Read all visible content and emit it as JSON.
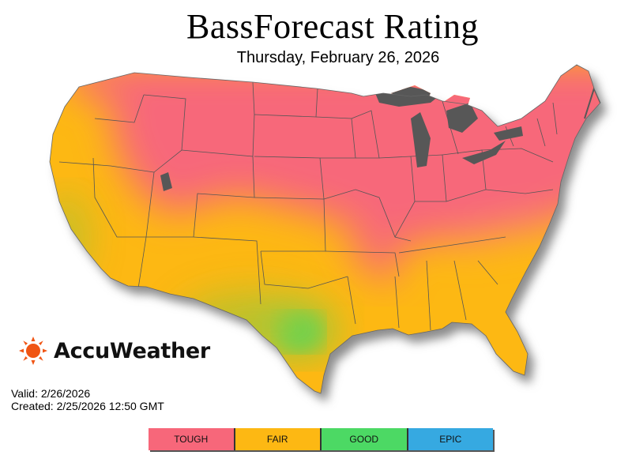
{
  "title": "BassForecast Rating",
  "date": "Thursday, February 26, 2026",
  "brand": {
    "name": "AccuWeather",
    "logo_icon": "sun-icon",
    "logo_color": "#f05514"
  },
  "valid_text": "Valid: 2/26/2026",
  "created_text": "Created: 2/25/2026 12:50 GMT",
  "map": {
    "region": "contiguous-united-states",
    "water_color": "#575757",
    "border_color": "#555555"
  },
  "legend": [
    {
      "label": "TOUGH",
      "color": "#f7677a"
    },
    {
      "label": "FAIR",
      "color": "#fdb813"
    },
    {
      "label": "GOOD",
      "color": "#4cd964"
    },
    {
      "label": "EPIC",
      "color": "#36a9e1"
    }
  ]
}
